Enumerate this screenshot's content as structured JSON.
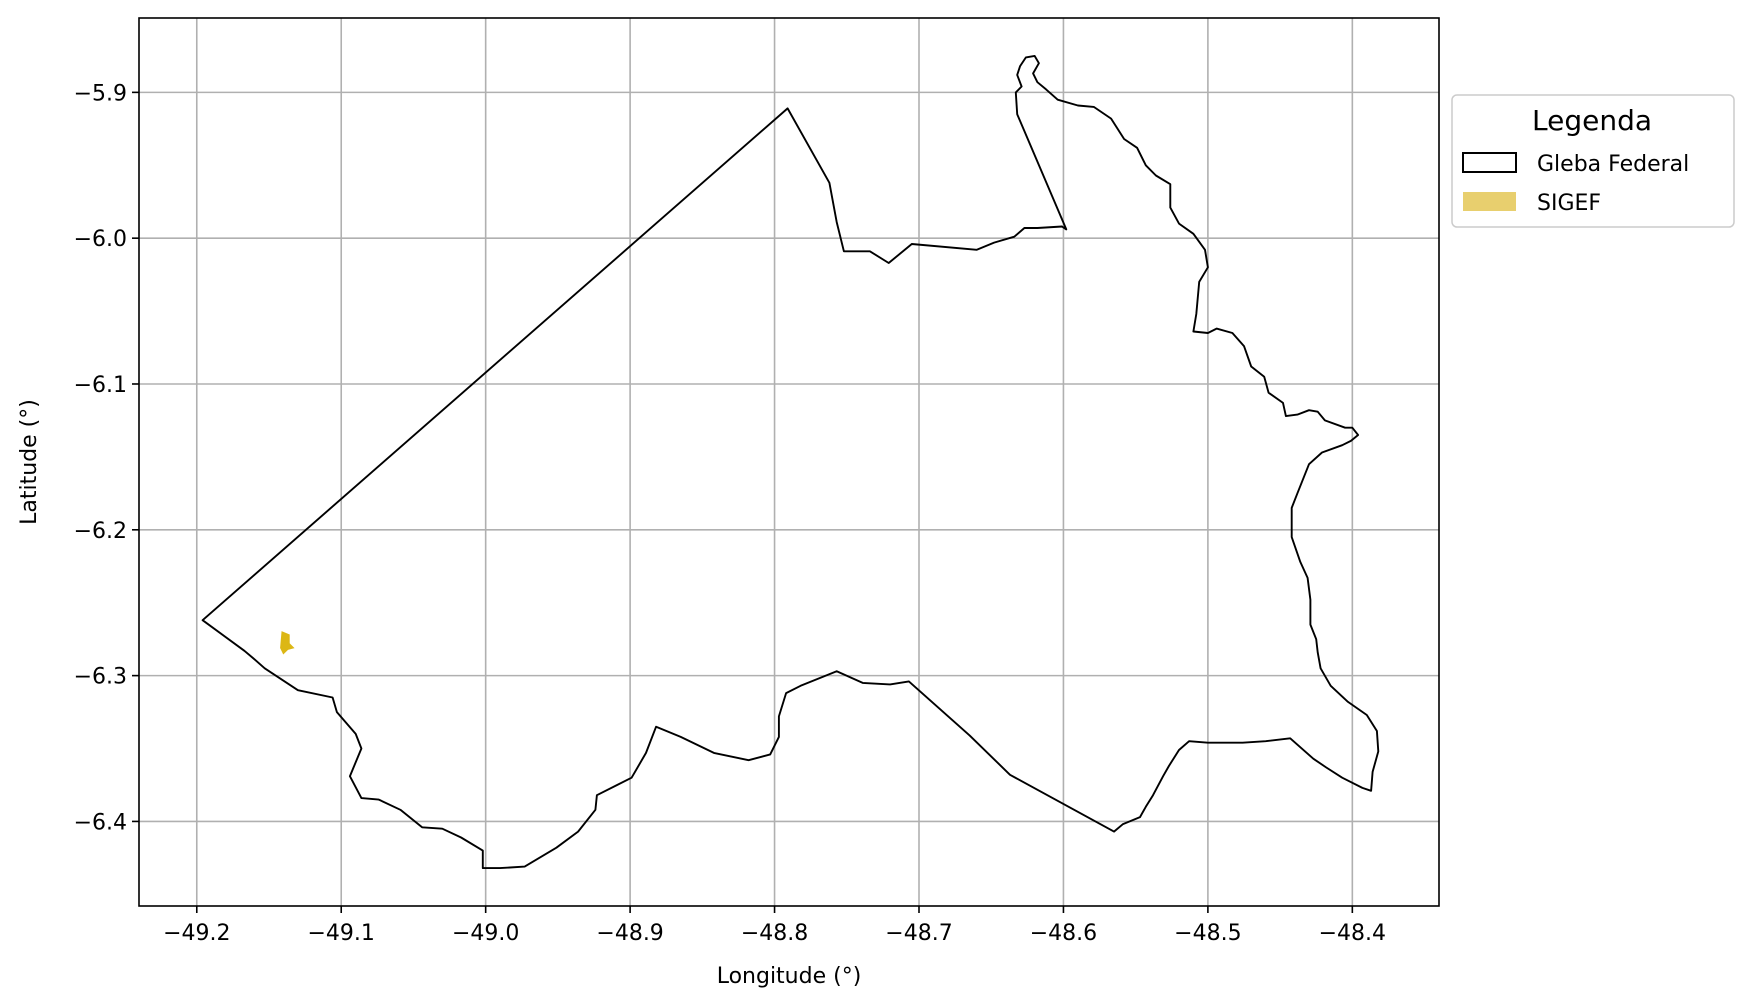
{
  "chart_data": {
    "type": "map",
    "title": "",
    "xlabel": "Longitude (°)",
    "ylabel": "Latitude (°)",
    "xlim": [
      -49.24,
      -48.34
    ],
    "ylim": [
      -6.458,
      -5.849
    ],
    "xticks": [
      -49.2,
      -49.1,
      -49.0,
      -48.9,
      -48.8,
      -48.7,
      -48.6,
      -48.5,
      -48.4
    ],
    "xtick_labels": [
      "−49.2",
      "−49.1",
      "−49.0",
      "−48.9",
      "−48.8",
      "−48.7",
      "−48.6",
      "−48.5",
      "−48.4"
    ],
    "yticks": [
      -5.9,
      -6.0,
      -6.1,
      -6.2,
      -6.3,
      -6.4
    ],
    "ytick_labels": [
      "−5.9",
      "−6.0",
      "−6.1",
      "−6.2",
      "−6.3",
      "−6.4"
    ],
    "grid": true,
    "legend": {
      "title": "Legenda",
      "placement": "outside-right-top",
      "entries": [
        {
          "label": "Gleba Federal",
          "style": "outline",
          "edge": "#000000",
          "fill": "none"
        },
        {
          "label": "SIGEF",
          "style": "fill",
          "fill": "#e8cf6e",
          "edge": "none"
        }
      ]
    },
    "layers": {
      "gleba": {
        "name": "Gleba Federal",
        "stroke": "#000000",
        "coordinates": [
          [
            -49.196,
            -6.262
          ],
          [
            -48.791,
            -5.911
          ],
          [
            -48.762,
            -5.962
          ],
          [
            -48.757,
            -5.989
          ],
          [
            -48.752,
            -6.009
          ],
          [
            -48.734,
            -6.009
          ],
          [
            -48.721,
            -6.017
          ],
          [
            -48.705,
            -6.004
          ],
          [
            -48.66,
            -6.008
          ],
          [
            -48.648,
            -6.003
          ],
          [
            -48.634,
            -5.999
          ],
          [
            -48.627,
            -5.993
          ],
          [
            -48.618,
            -5.993
          ],
          [
            -48.601,
            -5.992
          ],
          [
            -48.598,
            -5.994
          ],
          [
            -48.632,
            -5.915
          ],
          [
            -48.633,
            -5.9
          ],
          [
            -48.629,
            -5.896
          ],
          [
            -48.632,
            -5.888
          ],
          [
            -48.63,
            -5.882
          ],
          [
            -48.626,
            -5.876
          ],
          [
            -48.62,
            -5.875
          ],
          [
            -48.617,
            -5.88
          ],
          [
            -48.621,
            -5.887
          ],
          [
            -48.618,
            -5.893
          ],
          [
            -48.612,
            -5.898
          ],
          [
            -48.604,
            -5.905
          ],
          [
            -48.59,
            -5.909
          ],
          [
            -48.579,
            -5.91
          ],
          [
            -48.567,
            -5.918
          ],
          [
            -48.558,
            -5.932
          ],
          [
            -48.549,
            -5.938
          ],
          [
            -48.543,
            -5.95
          ],
          [
            -48.536,
            -5.957
          ],
          [
            -48.526,
            -5.963
          ],
          [
            -48.526,
            -5.979
          ],
          [
            -48.52,
            -5.99
          ],
          [
            -48.51,
            -5.997
          ],
          [
            -48.502,
            -6.008
          ],
          [
            -48.5,
            -6.02
          ],
          [
            -48.506,
            -6.03
          ],
          [
            -48.508,
            -6.052
          ],
          [
            -48.51,
            -6.064
          ],
          [
            -48.5,
            -6.065
          ],
          [
            -48.494,
            -6.062
          ],
          [
            -48.483,
            -6.065
          ],
          [
            -48.475,
            -6.074
          ],
          [
            -48.47,
            -6.088
          ],
          [
            -48.461,
            -6.095
          ],
          [
            -48.458,
            -6.106
          ],
          [
            -48.448,
            -6.113
          ],
          [
            -48.446,
            -6.122
          ],
          [
            -48.438,
            -6.121
          ],
          [
            -48.43,
            -6.118
          ],
          [
            -48.424,
            -6.119
          ],
          [
            -48.419,
            -6.125
          ],
          [
            -48.405,
            -6.13
          ],
          [
            -48.4,
            -6.13
          ],
          [
            -48.396,
            -6.135
          ],
          [
            -48.401,
            -6.139
          ],
          [
            -48.407,
            -6.142
          ],
          [
            -48.421,
            -6.147
          ],
          [
            -48.43,
            -6.155
          ],
          [
            -48.438,
            -6.175
          ],
          [
            -48.442,
            -6.185
          ],
          [
            -48.442,
            -6.205
          ],
          [
            -48.436,
            -6.222
          ],
          [
            -48.431,
            -6.233
          ],
          [
            -48.429,
            -6.248
          ],
          [
            -48.429,
            -6.265
          ],
          [
            -48.425,
            -6.275
          ],
          [
            -48.424,
            -6.284
          ],
          [
            -48.422,
            -6.295
          ],
          [
            -48.415,
            -6.307
          ],
          [
            -48.403,
            -6.318
          ],
          [
            -48.39,
            -6.327
          ],
          [
            -48.383,
            -6.338
          ],
          [
            -48.382,
            -6.352
          ],
          [
            -48.386,
            -6.366
          ],
          [
            -48.387,
            -6.379
          ],
          [
            -48.393,
            -6.377
          ],
          [
            -48.407,
            -6.37
          ],
          [
            -48.418,
            -6.363
          ],
          [
            -48.427,
            -6.357
          ],
          [
            -48.443,
            -6.343
          ],
          [
            -48.46,
            -6.345
          ],
          [
            -48.476,
            -6.346
          ],
          [
            -48.5,
            -6.346
          ],
          [
            -48.513,
            -6.345
          ],
          [
            -48.52,
            -6.351
          ],
          [
            -48.527,
            -6.362
          ],
          [
            -48.531,
            -6.369
          ],
          [
            -48.538,
            -6.382
          ],
          [
            -48.543,
            -6.39
          ],
          [
            -48.547,
            -6.397
          ],
          [
            -48.559,
            -6.402
          ],
          [
            -48.565,
            -6.407
          ],
          [
            -48.637,
            -6.368
          ],
          [
            -48.665,
            -6.341
          ],
          [
            -48.707,
            -6.304
          ],
          [
            -48.72,
            -6.306
          ],
          [
            -48.739,
            -6.305
          ],
          [
            -48.757,
            -6.297
          ],
          [
            -48.782,
            -6.307
          ],
          [
            -48.792,
            -6.312
          ],
          [
            -48.797,
            -6.328
          ],
          [
            -48.797,
            -6.342
          ],
          [
            -48.803,
            -6.354
          ],
          [
            -48.818,
            -6.358
          ],
          [
            -48.842,
            -6.353
          ],
          [
            -48.865,
            -6.342
          ],
          [
            -48.882,
            -6.335
          ],
          [
            -48.889,
            -6.353
          ],
          [
            -48.899,
            -6.37
          ],
          [
            -48.909,
            -6.375
          ],
          [
            -48.923,
            -6.382
          ],
          [
            -48.924,
            -6.392
          ],
          [
            -48.936,
            -6.407
          ],
          [
            -48.951,
            -6.418
          ],
          [
            -48.973,
            -6.431
          ],
          [
            -48.99,
            -6.432
          ],
          [
            -48.997,
            -6.432
          ],
          [
            -49.002,
            -6.432
          ],
          [
            -49.002,
            -6.42
          ],
          [
            -49.017,
            -6.411
          ],
          [
            -49.03,
            -6.405
          ],
          [
            -49.044,
            -6.404
          ],
          [
            -49.059,
            -6.392
          ],
          [
            -49.074,
            -6.385
          ],
          [
            -49.086,
            -6.384
          ],
          [
            -49.094,
            -6.369
          ],
          [
            -49.086,
            -6.35
          ],
          [
            -49.09,
            -6.34
          ],
          [
            -49.103,
            -6.325
          ],
          [
            -49.106,
            -6.315
          ],
          [
            -49.13,
            -6.31
          ],
          [
            -49.153,
            -6.295
          ],
          [
            -49.161,
            -6.288
          ],
          [
            -49.167,
            -6.283
          ],
          [
            -49.196,
            -6.262
          ]
        ]
      },
      "sigef": {
        "name": "SIGEF",
        "fill": "#dcb715",
        "coordinates": [
          [
            -49.141,
            -6.27
          ],
          [
            -49.136,
            -6.272
          ],
          [
            -49.136,
            -6.278
          ],
          [
            -49.133,
            -6.281
          ],
          [
            -49.137,
            -6.282
          ],
          [
            -49.14,
            -6.285
          ],
          [
            -49.142,
            -6.281
          ],
          [
            -49.141,
            -6.27
          ]
        ]
      }
    }
  }
}
